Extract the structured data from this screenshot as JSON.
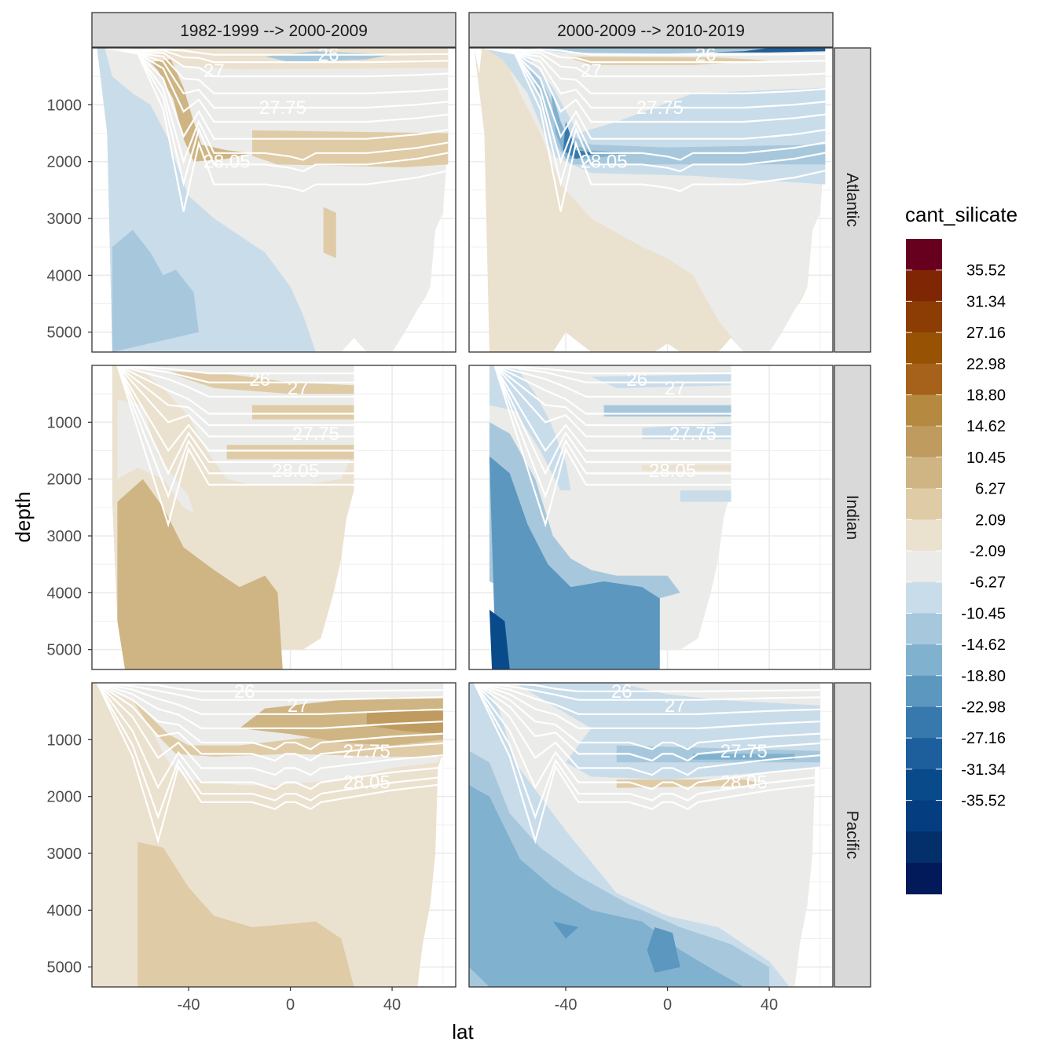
{
  "chart_data": {
    "type": "heatmap",
    "subtype": "faceted filled contour (ocean sections)",
    "xlabel": "lat",
    "ylabel": "depth",
    "xlim": [
      -78,
      65
    ],
    "ylim": [
      5350,
      0
    ],
    "x_ticks": [
      -40,
      0,
      40
    ],
    "y_ticks": [
      1000,
      2000,
      3000,
      4000,
      5000
    ],
    "col_facets": [
      "1982-1999 --> 2000-2009",
      "2000-2009 --> 2010-2019"
    ],
    "row_facets": [
      "Atlantic",
      "Indian",
      "Pacific"
    ],
    "legend": {
      "title": "cant_silicate",
      "labels": [
        "35.52",
        "31.34",
        "27.16",
        "22.98",
        "18.80",
        "14.62",
        "10.45",
        "6.27",
        "2.09",
        "-2.09",
        "-6.27",
        "-10.45",
        "-14.62",
        "-18.80",
        "-22.98",
        "-27.16",
        "-31.34",
        "-35.52"
      ],
      "colors": [
        "#67001f",
        "#7f2704",
        "#8c3d04",
        "#985204",
        "#a6611a",
        "#b58a40",
        "#bf9b60",
        "#cfb584",
        "#dfcba6",
        "#ebe1cf",
        "#ebebe9",
        "#c9dcea",
        "#a7c8dc",
        "#80b1cf",
        "#5b97be",
        "#3879ad",
        "#1d5f9c",
        "#094b8a",
        "#053d81",
        "#032f6b",
        "#021a59"
      ]
    },
    "contour_labels": [
      "26",
      "27",
      "27.75",
      "28.05"
    ],
    "contour_labels_pacific": [
      "26",
      "27",
      "27.75",
      "28.05"
    ],
    "density_levels": [
      26,
      26.5,
      27,
      27.25,
      27.5,
      27.75,
      27.85,
      27.95,
      28.05,
      28.1
    ],
    "panels": [
      {
        "basin": "Atlantic",
        "period": "1982-1999 --> 2000-2009",
        "dominant_range": "-10.45 to 14.62",
        "deep_signal": "negative (-6.27 to -14.62) south of -40",
        "intermediate_signal": "positive (6.27 to 14.62) near 1800 m"
      },
      {
        "basin": "Atlantic",
        "period": "2000-2009 --> 2010-2019",
        "dominant_range": "-22.98 to 6.27",
        "deep_signal": "positive (2.09 to 6.27)",
        "intermediate_signal": "negative (-6.27 to -18.80) between 700 and 2000 m"
      },
      {
        "basin": "Indian",
        "period": "1982-1999 --> 2000-2009",
        "dominant_range": "-2.09 to 14.62",
        "deep_signal": "positive (6.27 to 10.45)",
        "intermediate_signal": "positive near 800 m"
      },
      {
        "basin": "Indian",
        "period": "2000-2009 --> 2010-2019",
        "dominant_range": "-22.98 to 6.27",
        "deep_signal": "negative (-14.62 to -22.98)",
        "intermediate_signal": "negative (-2.09 to -6.27)"
      },
      {
        "basin": "Pacific",
        "period": "1982-1999 --> 2000-2009",
        "dominant_range": "-2.09 to 18.80",
        "deep_signal": "positive (2.09 to 10.45)",
        "intermediate_signal": "positive (10.45 to 18.80) near 800 m"
      },
      {
        "basin": "Pacific",
        "period": "2000-2009 --> 2010-2019",
        "dominant_range": "-18.80 to 6.27",
        "deep_signal": "negative (-6.27 to -18.80)",
        "intermediate_signal": "negative (-2.09 to -10.45)"
      }
    ]
  }
}
